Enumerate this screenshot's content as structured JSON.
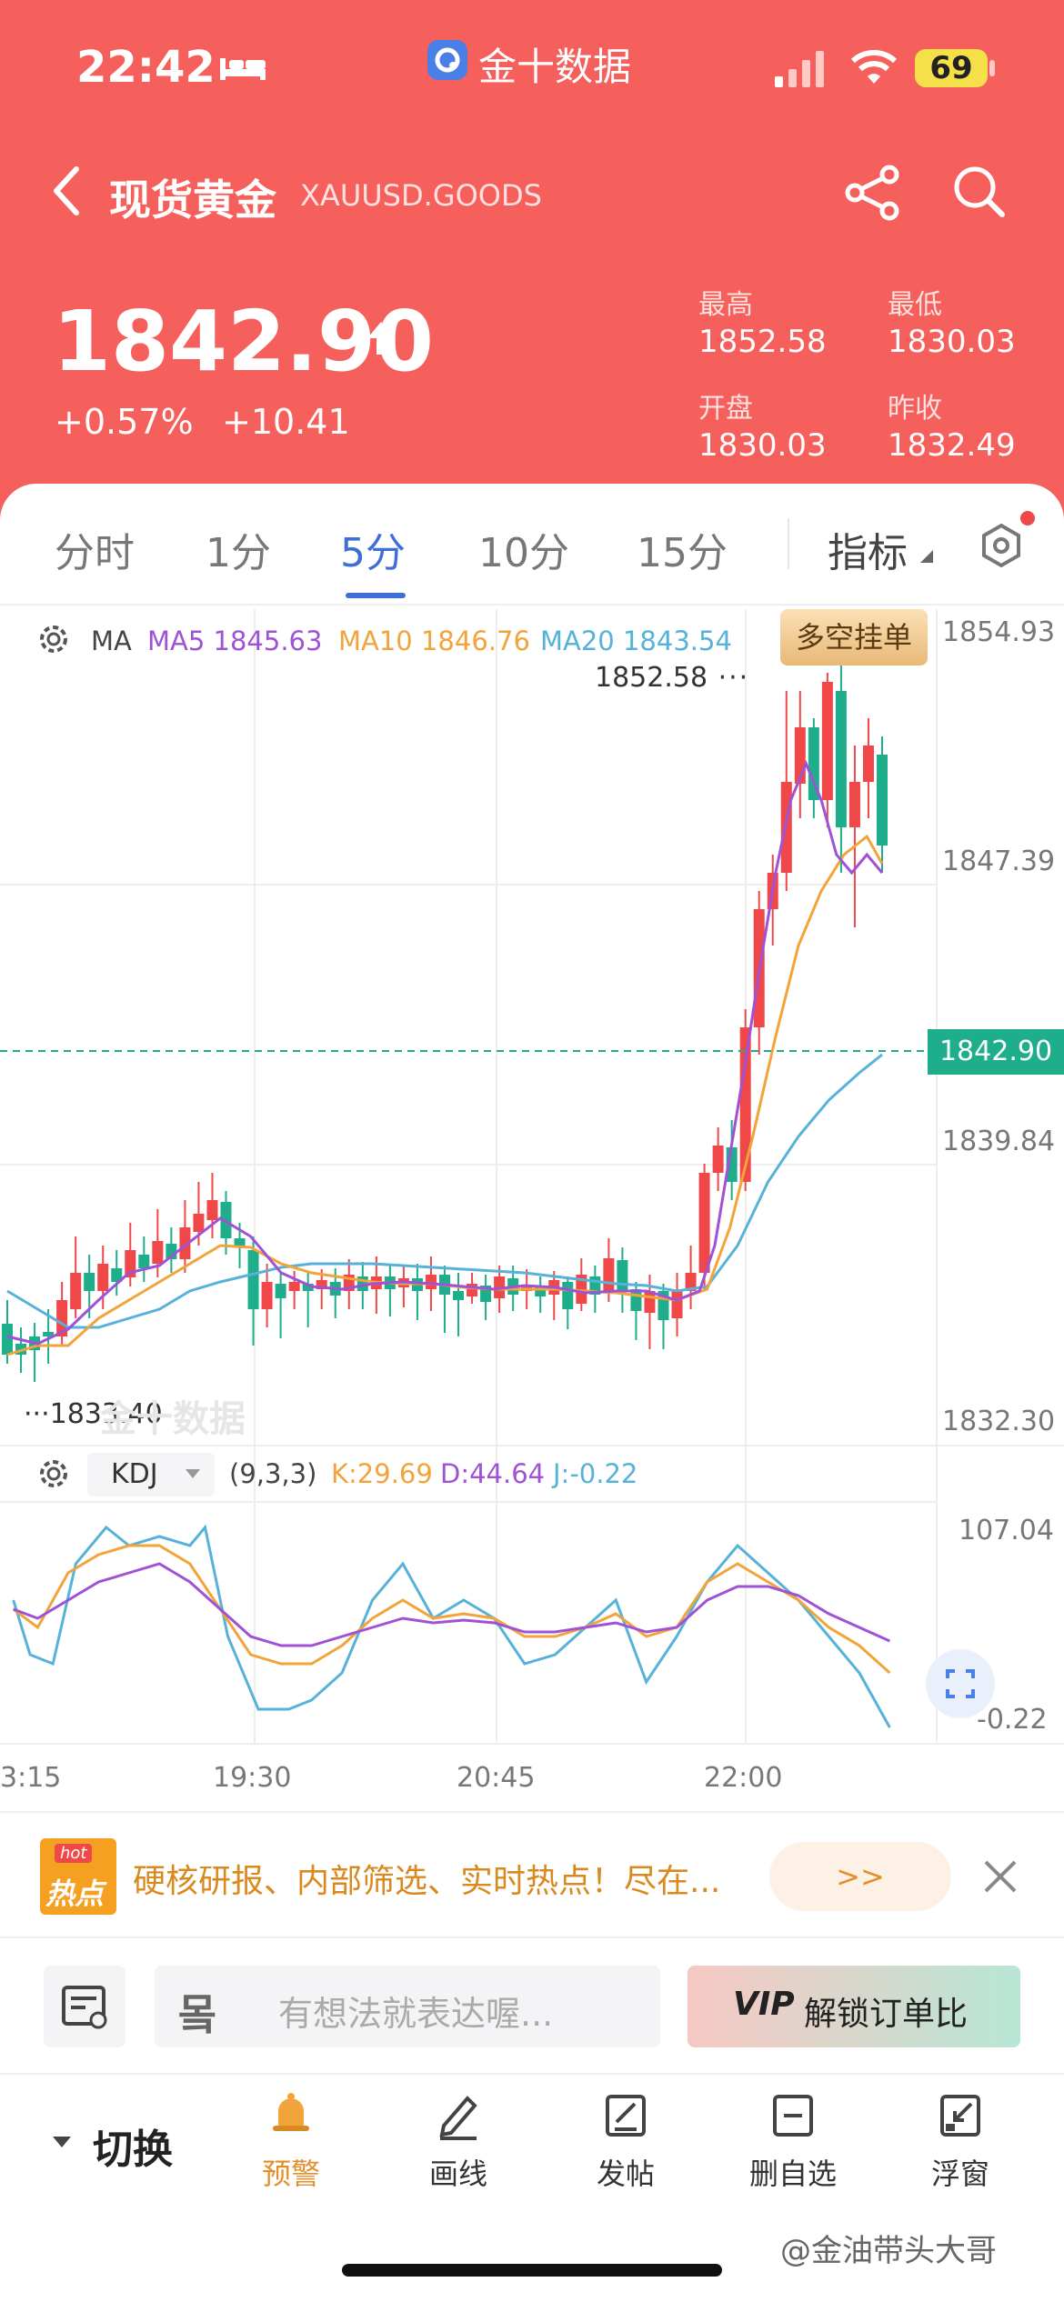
{
  "status_bar": {
    "time": "22:42",
    "app_name": "金十数据",
    "battery": "69"
  },
  "header": {
    "title": "现货黄金",
    "symbol": "XAUUSD.GOODS",
    "price": "1842.90",
    "change_pct": "+0.57%",
    "change_abs": "+10.41",
    "stats": [
      {
        "label": "最高",
        "value": "1852.58"
      },
      {
        "label": "最低",
        "value": "1830.03"
      },
      {
        "label": "开盘",
        "value": "1830.03"
      },
      {
        "label": "昨收",
        "value": "1832.49"
      }
    ]
  },
  "tabs": [
    "分时",
    "1分",
    "5分",
    "10分",
    "15分"
  ],
  "active_tab": "5分",
  "indicator_label": "指标",
  "chart": {
    "ma_label": "MA",
    "ma5": "MA5 1845.63",
    "ma10": "MA10 1846.76",
    "ma20": "MA20 1843.54",
    "button": "多空挂单",
    "price_axis": [
      "1854.93",
      "1847.39",
      "1839.84",
      "1832.30"
    ],
    "current_price": "1842.90",
    "high_mark": "1852.58",
    "low_mark": "1833.40",
    "watermark": "金十数据",
    "colors": {
      "up": "#f04848",
      "down": "#1fae8c",
      "ma5": "#a052d6",
      "ma10": "#f2a43b",
      "ma20": "#56b2d8"
    }
  },
  "kdj": {
    "label": "KDJ",
    "params": "(9,3,3)",
    "k": "K:29.69",
    "d": "D:44.64",
    "j": "J:-0.22",
    "axis_top": "107.04",
    "axis_bottom": "-0.22"
  },
  "time_axis": [
    "3:15",
    "19:30",
    "20:45",
    "22:00"
  ],
  "banner": {
    "badge_top": "hot",
    "badge_main": "热点",
    "text": "硬核研报、内部筛选、实时热点！尽在...",
    "button": ">>"
  },
  "comment_bar": {
    "placeholder": "有想法就表达喔...",
    "vip_text": "解锁订单比",
    "vip_badge": "VIP"
  },
  "bottom_nav": {
    "switch": "切换",
    "items": [
      "预警",
      "画线",
      "发帖",
      "删自选",
      "浮窗"
    ]
  },
  "watermark_user": "@金油带头大哥"
}
